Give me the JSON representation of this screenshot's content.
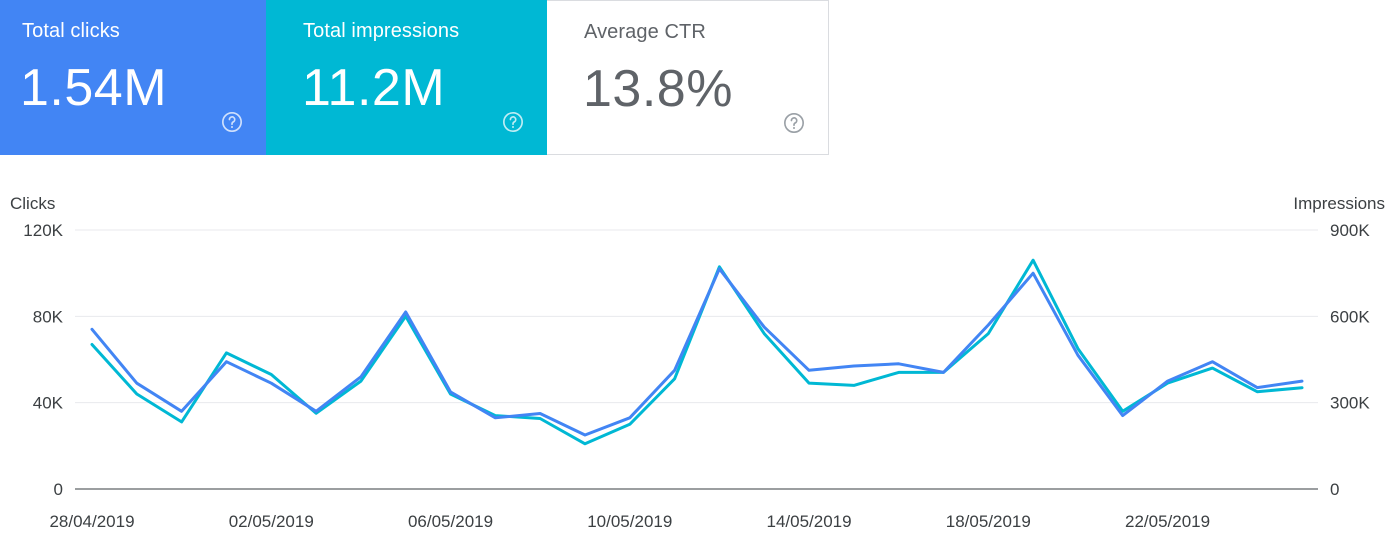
{
  "cards": [
    {
      "label": "Total clicks",
      "value": "1.54M",
      "color": "#4285f4"
    },
    {
      "label": "Total impressions",
      "value": "11.2M",
      "color": "#00b8d4"
    },
    {
      "label": "Average CTR",
      "value": "13.8%",
      "color": "#ffffff"
    }
  ],
  "icons": {
    "help": "help-circle-icon"
  },
  "chart_data": {
    "type": "line",
    "title": "",
    "xlabel": "",
    "ylabel": "Clicks",
    "ylabel_right": "Impressions",
    "ylim": [
      0,
      120000
    ],
    "ylim_right": [
      0,
      900000
    ],
    "y_ticks_left": [
      "0",
      "40K",
      "80K",
      "120K"
    ],
    "y_ticks_right": [
      "0",
      "300K",
      "600K",
      "900K"
    ],
    "x_tick_labels": [
      "28/04/2019",
      "02/05/2019",
      "06/05/2019",
      "10/05/2019",
      "14/05/2019",
      "18/05/2019",
      "22/05/2019"
    ],
    "x_tick_index": [
      0,
      4,
      8,
      12,
      16,
      20,
      24
    ],
    "categories": [
      "28/04/2019",
      "29/04/2019",
      "30/04/2019",
      "01/05/2019",
      "02/05/2019",
      "03/05/2019",
      "04/05/2019",
      "05/05/2019",
      "06/05/2019",
      "07/05/2019",
      "08/05/2019",
      "09/05/2019",
      "10/05/2019",
      "11/05/2019",
      "12/05/2019",
      "13/05/2019",
      "14/05/2019",
      "15/05/2019",
      "16/05/2019",
      "17/05/2019",
      "18/05/2019",
      "19/05/2019",
      "20/05/2019",
      "21/05/2019",
      "22/05/2019",
      "23/05/2019",
      "24/05/2019",
      "25/05/2019"
    ],
    "grid": true,
    "series": [
      {
        "name": "Clicks",
        "axis": "left",
        "color": "#4285f4",
        "values": [
          74000,
          49000,
          36000,
          59000,
          49000,
          36000,
          52000,
          82000,
          45000,
          33000,
          35000,
          25000,
          33000,
          55000,
          102000,
          75000,
          55000,
          57000,
          58000,
          54000,
          76000,
          100000,
          62000,
          34000,
          50000,
          59000,
          47000,
          50000
        ]
      },
      {
        "name": "Impressions",
        "axis": "right",
        "color": "#00b8d4",
        "values": [
          502000,
          330000,
          233000,
          473000,
          398000,
          263000,
          375000,
          600000,
          330000,
          255000,
          245000,
          157000,
          225000,
          383000,
          772000,
          540000,
          368000,
          360000,
          405000,
          405000,
          540000,
          795000,
          488000,
          270000,
          368000,
          420000,
          338000,
          352000
        ]
      }
    ]
  }
}
